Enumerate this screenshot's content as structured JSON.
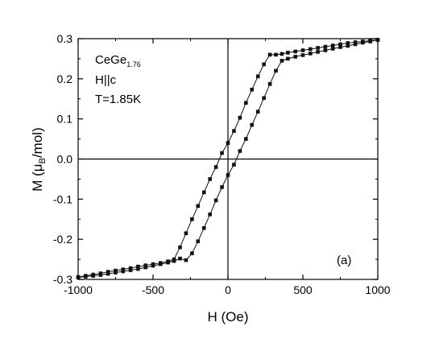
{
  "chart_data": {
    "type": "scatter",
    "xlabel": "H (Oe)",
    "ylabel": {
      "prefix": "M (",
      "mu": "μ",
      "sub": "B",
      "suffix": "/mol)"
    },
    "xlim": [
      -1000,
      1000
    ],
    "ylim": [
      -0.3,
      0.3
    ],
    "xticks": [
      -1000,
      -500,
      0,
      500,
      1000
    ],
    "xtick_labels": [
      "-1000",
      "-500",
      "0",
      "500",
      "1000"
    ],
    "yticks": [
      -0.3,
      -0.2,
      -0.1,
      0.0,
      0.1,
      0.2,
      0.3
    ],
    "ytick_labels": [
      "-0.3",
      "-0.2",
      "-0.1",
      "0.0",
      "0.1",
      "0.2",
      "0.3"
    ],
    "grid": false,
    "zero_lines": true,
    "annotations": {
      "compound": "CeGe",
      "compound_sub": "1.76",
      "field_dir": "H||c",
      "temperature": "T=1.85K",
      "panel": "(a)"
    },
    "series": [
      {
        "values": [
          [
            -1000,
            -0.294
          ],
          [
            -950,
            -0.291
          ],
          [
            -900,
            -0.288
          ],
          [
            -850,
            -0.285
          ],
          [
            -800,
            -0.281
          ],
          [
            -750,
            -0.278
          ],
          [
            -700,
            -0.275
          ],
          [
            -650,
            -0.272
          ],
          [
            -600,
            -0.268
          ],
          [
            -550,
            -0.265
          ],
          [
            -500,
            -0.262
          ],
          [
            -450,
            -0.259
          ],
          [
            -400,
            -0.255
          ],
          [
            -360,
            -0.25
          ],
          [
            -320,
            -0.22
          ],
          [
            -280,
            -0.185
          ],
          [
            -240,
            -0.15
          ],
          [
            -200,
            -0.117
          ],
          [
            -160,
            -0.083
          ],
          [
            -120,
            -0.05
          ],
          [
            -80,
            -0.02
          ],
          [
            -40,
            0.015
          ],
          [
            0,
            0.04
          ],
          [
            40,
            0.07
          ],
          [
            80,
            0.103
          ],
          [
            120,
            0.14
          ],
          [
            160,
            0.173
          ],
          [
            200,
            0.206
          ],
          [
            240,
            0.236
          ],
          [
            280,
            0.26
          ],
          [
            320,
            0.26
          ],
          [
            360,
            0.262
          ],
          [
            400,
            0.265
          ],
          [
            450,
            0.268
          ],
          [
            500,
            0.271
          ],
          [
            550,
            0.274
          ],
          [
            600,
            0.277
          ],
          [
            650,
            0.28
          ],
          [
            700,
            0.283
          ],
          [
            750,
            0.286
          ],
          [
            800,
            0.289
          ],
          [
            850,
            0.291
          ],
          [
            900,
            0.293
          ],
          [
            950,
            0.295
          ],
          [
            1000,
            0.297
          ]
        ]
      },
      {
        "values": [
          [
            1000,
            0.297
          ],
          [
            950,
            0.293
          ],
          [
            900,
            0.29
          ],
          [
            850,
            0.286
          ],
          [
            800,
            0.282
          ],
          [
            750,
            0.279
          ],
          [
            700,
            0.275
          ],
          [
            650,
            0.271
          ],
          [
            600,
            0.267
          ],
          [
            550,
            0.263
          ],
          [
            500,
            0.259
          ],
          [
            450,
            0.255
          ],
          [
            400,
            0.25
          ],
          [
            360,
            0.245
          ],
          [
            320,
            0.22
          ],
          [
            280,
            0.187
          ],
          [
            240,
            0.152
          ],
          [
            200,
            0.118
          ],
          [
            160,
            0.085
          ],
          [
            120,
            0.05
          ],
          [
            80,
            0.02
          ],
          [
            40,
            -0.014
          ],
          [
            0,
            -0.04
          ],
          [
            -40,
            -0.07
          ],
          [
            -80,
            -0.103
          ],
          [
            -120,
            -0.138
          ],
          [
            -160,
            -0.172
          ],
          [
            -200,
            -0.205
          ],
          [
            -240,
            -0.235
          ],
          [
            -280,
            -0.252
          ],
          [
            -320,
            -0.248
          ],
          [
            -360,
            -0.254
          ],
          [
            -400,
            -0.258
          ],
          [
            -450,
            -0.262
          ],
          [
            -500,
            -0.266
          ],
          [
            -550,
            -0.27
          ],
          [
            -600,
            -0.274
          ],
          [
            -650,
            -0.277
          ],
          [
            -700,
            -0.28
          ],
          [
            -750,
            -0.283
          ],
          [
            -800,
            -0.286
          ],
          [
            -850,
            -0.289
          ],
          [
            -900,
            -0.291
          ],
          [
            -950,
            -0.293
          ],
          [
            -1000,
            -0.295
          ]
        ]
      }
    ]
  },
  "colors": {
    "axis": "#000000",
    "marker": "#111111",
    "background": "#ffffff"
  }
}
